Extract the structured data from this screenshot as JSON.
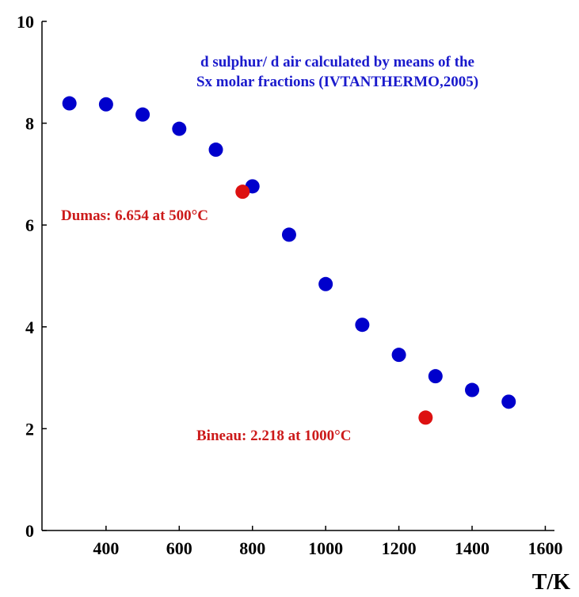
{
  "chart_data": {
    "type": "scatter",
    "title": [
      "d sulphur/ d air calculated by means of the",
      "Sx molar fractions  (IVTANTHERMO,2005)"
    ],
    "xlabel": "T/K",
    "ylabel": "",
    "xlim": [
      225,
      1625
    ],
    "ylim": [
      0,
      10
    ],
    "xticks": [
      400,
      600,
      800,
      1000,
      1200,
      1400,
      1600
    ],
    "yticks": [
      0,
      2,
      4,
      6,
      8,
      10
    ],
    "grid": false,
    "series": [
      {
        "color": "#0000cc",
        "x": [
          300,
          400,
          500,
          600,
          700,
          800,
          900,
          1000,
          1100,
          1200,
          1300,
          1400,
          1500
        ],
        "y": [
          8.39,
          8.37,
          8.17,
          7.89,
          7.48,
          6.76,
          5.81,
          4.84,
          4.04,
          3.45,
          3.03,
          2.76,
          2.53
        ]
      },
      {
        "color": "#dd1111",
        "x": [
          773,
          1273
        ],
        "y": [
          6.654,
          2.218
        ]
      }
    ],
    "annotations": [
      {
        "text": "Dumas: 6.654 at 500°C",
        "color": "#cc1a1a"
      },
      {
        "text": "Bineau: 2.218 at 1000°C",
        "color": "#cc1a1a"
      }
    ],
    "title_color": "#1a1acc"
  }
}
